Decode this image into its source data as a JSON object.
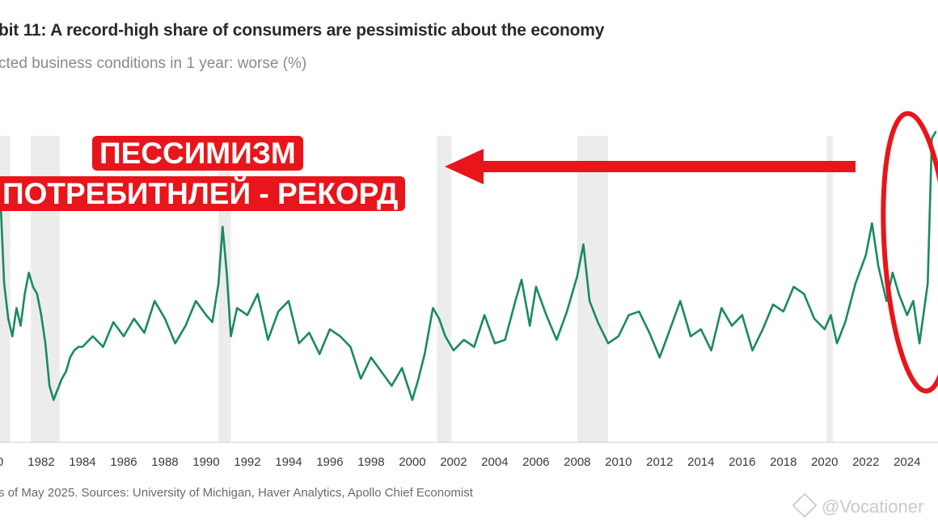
{
  "header": {
    "title": "bit 11: A record-high share of consumers are pessimistic about the economy",
    "subtitle": "cted business conditions in 1 year: worse (%)"
  },
  "footer": {
    "source": "s of May 2025. Sources: University of Michigan, Haver Analytics, Apollo Chief Economist"
  },
  "annotation": {
    "line1": "ПЕССИМИЗМ",
    "line2": "ПОТРЕБИТНЛЕЙ - РЕКОРД",
    "color": "#e8151b"
  },
  "watermark": {
    "text": "@Vocationer",
    "icon": "diamond-logo-icon"
  },
  "chart_data": {
    "type": "line",
    "title": "bit 11: A record-high share of consumers are pessimistic about the economy",
    "ylabel": "cted business conditions in 1 year: worse (%)",
    "xlabel": "",
    "x_tick_labels": [
      "0",
      "1982",
      "1984",
      "1986",
      "1988",
      "1990",
      "1992",
      "1994",
      "1996",
      "1998",
      "2000",
      "2002",
      "2004",
      "2006",
      "2008",
      "2010",
      "2012",
      "2014",
      "2016",
      "2018",
      "2020",
      "2022",
      "2024"
    ],
    "xlim": [
      1980,
      2025.5
    ],
    "ylim": [
      0,
      100
    ],
    "line_color": "#1a8a5f",
    "recession_color": "#ececec",
    "recessions": [
      [
        1980.0,
        1980.5
      ],
      [
        1981.5,
        1982.9
      ],
      [
        1990.6,
        1991.2
      ],
      [
        2001.2,
        2001.9
      ],
      [
        2008.0,
        2009.5
      ],
      [
        2020.1,
        2020.4
      ]
    ],
    "series": [
      {
        "x": [
          1980.0,
          1980.2,
          1980.4,
          1980.6,
          1980.8,
          1981.0,
          1981.2,
          1981.4,
          1981.6,
          1981.8,
          1982.0,
          1982.2,
          1982.4,
          1982.6,
          1982.8,
          1983.0,
          1983.2,
          1983.4,
          1983.6,
          1983.8,
          1984.0,
          1984.5,
          1985.0,
          1985.5,
          1986.0,
          1986.5,
          1987.0,
          1987.5,
          1988.0,
          1988.5,
          1989.0,
          1989.5,
          1990.0,
          1990.3,
          1990.6,
          1990.8,
          1991.0,
          1991.2,
          1991.5,
          1992.0,
          1992.5,
          1993.0,
          1993.5,
          1994.0,
          1994.5,
          1995.0,
          1995.5,
          1996.0,
          1996.5,
          1997.0,
          1997.5,
          1998.0,
          1998.5,
          1999.0,
          1999.5,
          2000.0,
          2000.3,
          2000.6,
          2001.0,
          2001.3,
          2001.6,
          2002.0,
          2002.5,
          2003.0,
          2003.5,
          2004.0,
          2004.5,
          2005.0,
          2005.3,
          2005.7,
          2006.0,
          2006.5,
          2007.0,
          2007.5,
          2008.0,
          2008.3,
          2008.6,
          2009.0,
          2009.5,
          2010.0,
          2010.5,
          2011.0,
          2011.5,
          2012.0,
          2012.5,
          2013.0,
          2013.5,
          2014.0,
          2014.5,
          2015.0,
          2015.5,
          2016.0,
          2016.5,
          2017.0,
          2017.5,
          2018.0,
          2018.5,
          2019.0,
          2019.5,
          2020.0,
          2020.3,
          2020.6,
          2021.0,
          2021.5,
          2022.0,
          2022.3,
          2022.6,
          2023.0,
          2023.3,
          2023.6,
          2024.0,
          2024.3,
          2024.6,
          2025.0,
          2025.2,
          2025.4
        ],
        "values": [
          72,
          45,
          35,
          30,
          38,
          33,
          42,
          48,
          44,
          42,
          36,
          28,
          16,
          12,
          15,
          18,
          20,
          24,
          26,
          27,
          27,
          30,
          27,
          34,
          30,
          35,
          31,
          40,
          35,
          28,
          33,
          40,
          36,
          34,
          45,
          61,
          48,
          30,
          38,
          36,
          42,
          29,
          37,
          40,
          28,
          31,
          25,
          32,
          30,
          27,
          18,
          24,
          20,
          16,
          21,
          12,
          18,
          25,
          38,
          35,
          30,
          26,
          29,
          27,
          36,
          28,
          29,
          40,
          46,
          33,
          44,
          36,
          29,
          37,
          47,
          56,
          40,
          34,
          28,
          30,
          36,
          37,
          31,
          24,
          32,
          40,
          30,
          32,
          26,
          38,
          33,
          36,
          26,
          32,
          39,
          37,
          44,
          42,
          35,
          32,
          36,
          28,
          34,
          45,
          53,
          62,
          50,
          40,
          48,
          42,
          36,
          40,
          28,
          45,
          86,
          88
        ]
      }
    ]
  }
}
